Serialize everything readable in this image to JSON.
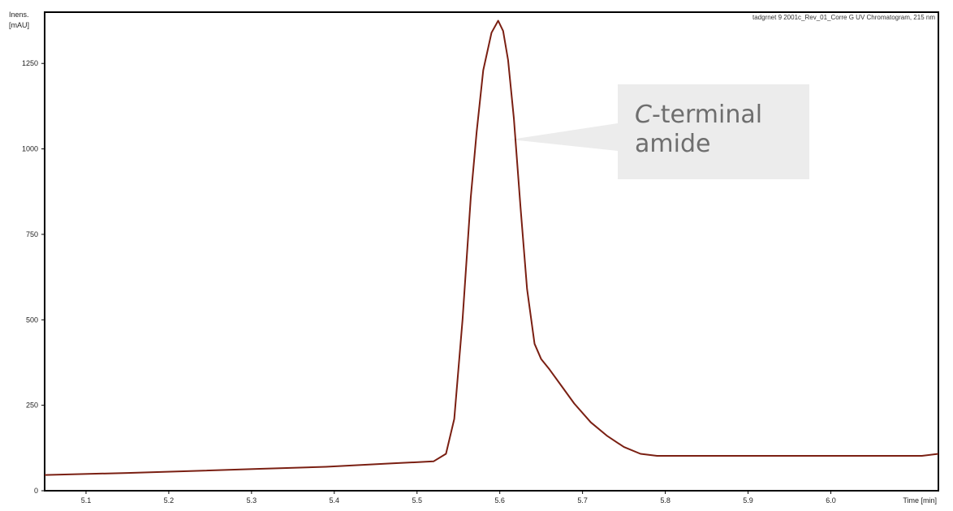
{
  "chart_data": {
    "type": "line",
    "ylabel_line1": "Inens.",
    "ylabel_line2": "[mAU]",
    "xlabel": "Time [min]",
    "file_label": "tadgrnet 9 2001c_Rev_01_Corre G UV Chromatogram, 215 nm",
    "xlim": [
      5.05,
      6.13
    ],
    "ylim": [
      0,
      1400
    ],
    "x_ticks": [
      5.1,
      5.2,
      5.3,
      5.4,
      5.5,
      5.6,
      5.7,
      5.8,
      5.9,
      6.0
    ],
    "x_tick_labels": [
      "5.1",
      "5.2",
      "5.3",
      "5.4",
      "5.5",
      "5.6",
      "5.7",
      "5.8",
      "5.9",
      "6.0"
    ],
    "y_ticks": [
      0,
      250,
      500,
      750,
      1000,
      1250
    ],
    "y_tick_labels": [
      "0",
      "250",
      "500",
      "750",
      "1000",
      "1250"
    ],
    "grid": false,
    "series": [
      {
        "color": "#7a1f12",
        "x": [
          5.05,
          5.15,
          5.23,
          5.31,
          5.39,
          5.47,
          5.52,
          5.535,
          5.545,
          5.555,
          5.565,
          5.572,
          5.58,
          5.59,
          5.598,
          5.604,
          5.61,
          5.617,
          5.625,
          5.633,
          5.642,
          5.65,
          5.66,
          5.675,
          5.69,
          5.71,
          5.73,
          5.75,
          5.77,
          5.79,
          5.85,
          5.95,
          6.05,
          6.11,
          6.13
        ],
        "values": [
          46,
          52,
          58,
          64,
          70,
          80,
          86,
          108,
          210,
          500,
          860,
          1050,
          1230,
          1340,
          1375,
          1345,
          1260,
          1090,
          830,
          590,
          430,
          385,
          355,
          305,
          255,
          200,
          160,
          128,
          108,
          102,
          102,
          102,
          102,
          102,
          108
        ]
      }
    ]
  },
  "annotation": {
    "italic_part": "C",
    "rest_line1": "-terminal",
    "line2": "amide"
  }
}
